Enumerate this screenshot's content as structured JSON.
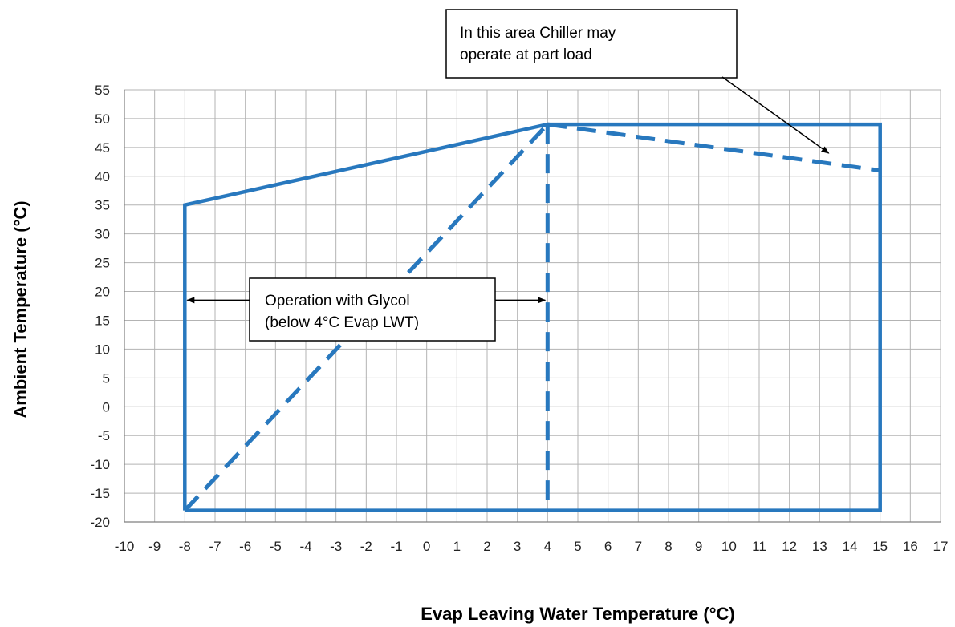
{
  "chart_data": {
    "type": "line",
    "title": "",
    "xlabel": "Evap Leaving Water Temperature (°C)",
    "ylabel": "Ambient Temperature (°C)",
    "xlim": [
      -10,
      17
    ],
    "ylim": [
      -20,
      55
    ],
    "x_ticks": [
      -10,
      -9,
      -8,
      -7,
      -6,
      -5,
      -4,
      -3,
      -2,
      -1,
      0,
      1,
      2,
      3,
      4,
      5,
      6,
      7,
      8,
      9,
      10,
      11,
      12,
      13,
      14,
      15,
      16,
      17
    ],
    "y_ticks": [
      55,
      50,
      45,
      40,
      35,
      30,
      25,
      20,
      15,
      10,
      5,
      0,
      -5,
      -10,
      -15,
      -20
    ],
    "grid": true,
    "series": [
      {
        "style": "solid",
        "color": "#2878be",
        "points": [
          [
            -8,
            -18
          ],
          [
            -8,
            35
          ],
          [
            4,
            49
          ],
          [
            15,
            49
          ],
          [
            15,
            -18
          ],
          [
            -8,
            -18
          ]
        ]
      },
      {
        "style": "dashed",
        "color": "#2878be",
        "points": [
          [
            -8,
            -18
          ],
          [
            4,
            49
          ]
        ]
      },
      {
        "style": "dashed",
        "color": "#2878be",
        "points": [
          [
            4,
            49
          ],
          [
            4,
            -18
          ]
        ]
      },
      {
        "style": "dashed",
        "color": "#2878be",
        "points": [
          [
            4,
            49
          ],
          [
            15,
            41
          ]
        ]
      }
    ],
    "annotations": [
      {
        "id": "part-load-note",
        "lines": [
          "In this area Chiller may",
          "operate at part load"
        ],
        "arrow_to": [
          13.3,
          44
        ]
      },
      {
        "id": "glycol-note",
        "lines": [
          "Operation with Glycol",
          "(below 4°C Evap LWT)"
        ],
        "arrow_left_to": [
          -8,
          18.5
        ],
        "arrow_right_to": [
          4,
          18.5
        ]
      }
    ]
  }
}
